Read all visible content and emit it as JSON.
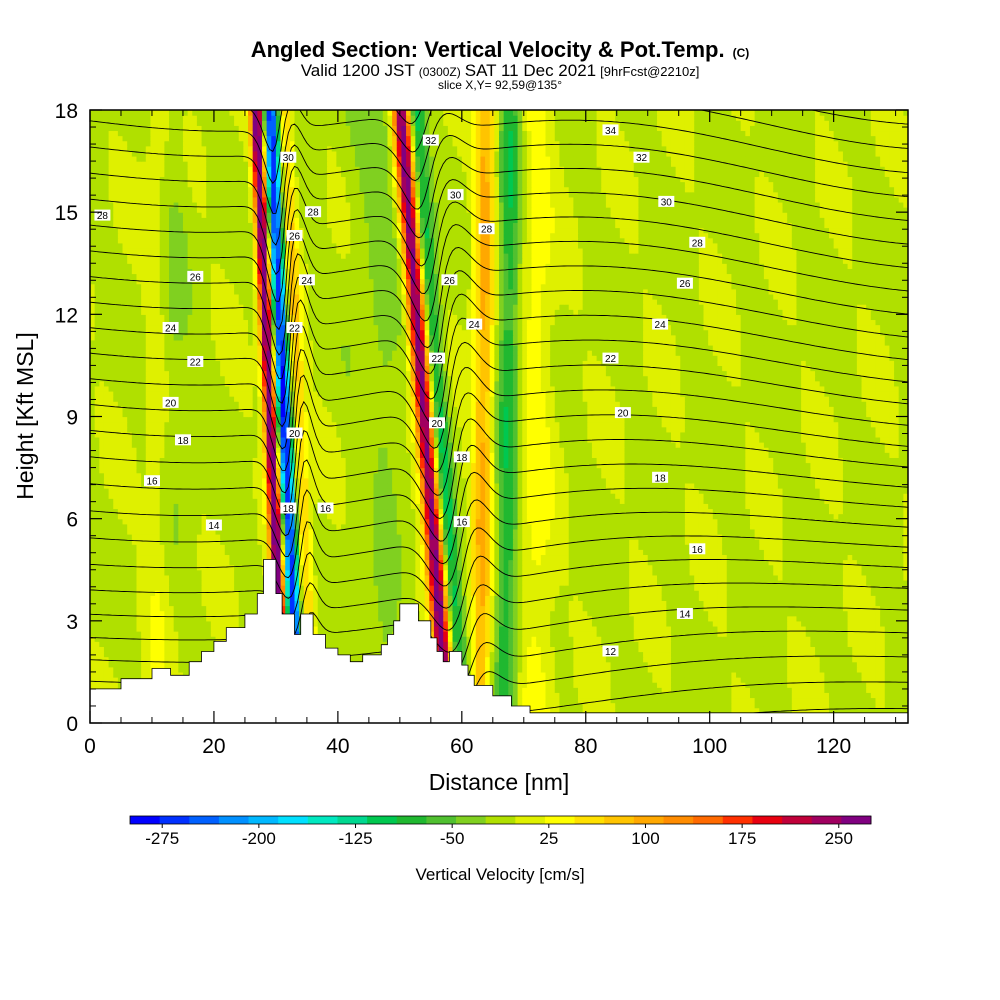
{
  "chart_data": {
    "type": "heatmap",
    "title": "Angled Section: Vertical Velocity & Pot.Temp.",
    "title_mark": "(C)",
    "subtitle_valid": "Valid 1200 JST",
    "subtitle_utc": "(0300Z)",
    "subtitle_date": "SAT 11 Dec 2021",
    "subtitle_fcst": "[9hrFcst@2210z]",
    "slice_label": "slice X,Y= 92,59@135°",
    "xlabel": "Distance [nm]",
    "ylabel": "Height [Kft MSL]",
    "xlim": [
      0,
      132
    ],
    "ylim": [
      0,
      18
    ],
    "xticks": [
      0,
      20,
      40,
      60,
      80,
      100,
      120
    ],
    "yticks": [
      0,
      3,
      6,
      9,
      12,
      15,
      18
    ],
    "colorbar": {
      "label": "Vertical Velocity [cm/s]",
      "ticks": [
        -275,
        -200,
        -125,
        -50,
        25,
        100,
        175,
        250
      ],
      "range": [
        -300,
        275
      ],
      "step": 25,
      "colors": [
        "#0000ff",
        "#0030ff",
        "#0060ff",
        "#0090ff",
        "#00b8ff",
        "#00e0ff",
        "#00e8c0",
        "#00d890",
        "#00c850",
        "#20b830",
        "#50c030",
        "#80d020",
        "#b0e000",
        "#dff000",
        "#ffff00",
        "#ffe000",
        "#ffc400",
        "#ffa800",
        "#ff8c00",
        "#ff6a00",
        "#ff3000",
        "#e80010",
        "#c0003a",
        "#a00060",
        "#800080"
      ]
    },
    "terrain_profile": [
      [
        0,
        1
      ],
      [
        5,
        1
      ],
      [
        5,
        1.3
      ],
      [
        10,
        1.3
      ],
      [
        10,
        1.6
      ],
      [
        13,
        1.6
      ],
      [
        13,
        1.4
      ],
      [
        16,
        1.4
      ],
      [
        16,
        1.8
      ],
      [
        18,
        1.8
      ],
      [
        18,
        2.1
      ],
      [
        20,
        2.1
      ],
      [
        20,
        2.4
      ],
      [
        22,
        2.4
      ],
      [
        22,
        2.8
      ],
      [
        25,
        2.8
      ],
      [
        25,
        3.2
      ],
      [
        27,
        3.2
      ],
      [
        27,
        3.8
      ],
      [
        28,
        3.8
      ],
      [
        28,
        4.8
      ],
      [
        30,
        4.8
      ],
      [
        30,
        3.8
      ],
      [
        31,
        3.8
      ],
      [
        31,
        3.2
      ],
      [
        33,
        3.2
      ],
      [
        33,
        2.6
      ],
      [
        34,
        2.6
      ],
      [
        34,
        3.2
      ],
      [
        36,
        3.2
      ],
      [
        36,
        2.6
      ],
      [
        38,
        2.6
      ],
      [
        38,
        2.2
      ],
      [
        40,
        2.2
      ],
      [
        40,
        2.0
      ],
      [
        42,
        2.0
      ],
      [
        42,
        1.8
      ],
      [
        44,
        1.8
      ],
      [
        44,
        2.0
      ],
      [
        47,
        2.0
      ],
      [
        47,
        2.3
      ],
      [
        48,
        2.3
      ],
      [
        48,
        2.6
      ],
      [
        49,
        2.6
      ],
      [
        49,
        3.0
      ],
      [
        50,
        3.0
      ],
      [
        50,
        3.5
      ],
      [
        53,
        3.5
      ],
      [
        53,
        3.0
      ],
      [
        55,
        3.0
      ],
      [
        55,
        2.5
      ],
      [
        56,
        2.5
      ],
      [
        56,
        2.1
      ],
      [
        57,
        2.1
      ],
      [
        57,
        1.8
      ],
      [
        58,
        1.8
      ],
      [
        58,
        2.1
      ],
      [
        60,
        2.1
      ],
      [
        60,
        1.7
      ],
      [
        61,
        1.7
      ],
      [
        61,
        1.4
      ],
      [
        62,
        1.4
      ],
      [
        62,
        1.1
      ],
      [
        65,
        1.1
      ],
      [
        65,
        0.8
      ],
      [
        68,
        0.8
      ],
      [
        68,
        0.5
      ],
      [
        71,
        0.5
      ],
      [
        71,
        0.3
      ],
      [
        132,
        0.3
      ]
    ],
    "theta_labels": [
      {
        "x": 2,
        "y": 14.9,
        "text": "28"
      },
      {
        "x": 17,
        "y": 13.1,
        "text": "26"
      },
      {
        "x": 13,
        "y": 11.6,
        "text": "24"
      },
      {
        "x": 17,
        "y": 10.6,
        "text": "22"
      },
      {
        "x": 13,
        "y": 9.4,
        "text": "20"
      },
      {
        "x": 15,
        "y": 8.3,
        "text": "18"
      },
      {
        "x": 10,
        "y": 7.1,
        "text": "16"
      },
      {
        "x": 20,
        "y": 5.8,
        "text": "14"
      },
      {
        "x": 32,
        "y": 16.6,
        "text": "30"
      },
      {
        "x": 36,
        "y": 15.0,
        "text": "28"
      },
      {
        "x": 33,
        "y": 14.3,
        "text": "26"
      },
      {
        "x": 35,
        "y": 13.0,
        "text": "24"
      },
      {
        "x": 33,
        "y": 11.6,
        "text": "22"
      },
      {
        "x": 33,
        "y": 8.5,
        "text": "20"
      },
      {
        "x": 32,
        "y": 6.3,
        "text": "18"
      },
      {
        "x": 38,
        "y": 6.3,
        "text": "16"
      },
      {
        "x": 55,
        "y": 17.1,
        "text": "32"
      },
      {
        "x": 59,
        "y": 15.5,
        "text": "30"
      },
      {
        "x": 64,
        "y": 14.5,
        "text": "28"
      },
      {
        "x": 58,
        "y": 13.0,
        "text": "26"
      },
      {
        "x": 62,
        "y": 11.7,
        "text": "24"
      },
      {
        "x": 56,
        "y": 10.7,
        "text": "22"
      },
      {
        "x": 56,
        "y": 8.8,
        "text": "20"
      },
      {
        "x": 60,
        "y": 7.8,
        "text": "18"
      },
      {
        "x": 60,
        "y": 5.9,
        "text": "16"
      },
      {
        "x": 84,
        "y": 17.4,
        "text": "34"
      },
      {
        "x": 89,
        "y": 16.6,
        "text": "32"
      },
      {
        "x": 93,
        "y": 15.3,
        "text": "30"
      },
      {
        "x": 98,
        "y": 14.1,
        "text": "28"
      },
      {
        "x": 96,
        "y": 12.9,
        "text": "26"
      },
      {
        "x": 92,
        "y": 11.7,
        "text": "24"
      },
      {
        "x": 84,
        "y": 10.7,
        "text": "22"
      },
      {
        "x": 86,
        "y": 9.1,
        "text": "20"
      },
      {
        "x": 92,
        "y": 7.2,
        "text": "18"
      },
      {
        "x": 98,
        "y": 5.1,
        "text": "16"
      },
      {
        "x": 96,
        "y": 3.2,
        "text": "14"
      },
      {
        "x": 84,
        "y": 2.1,
        "text": "12"
      }
    ]
  }
}
